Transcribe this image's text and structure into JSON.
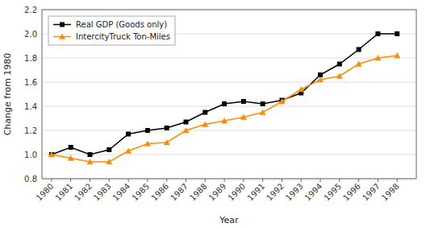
{
  "chart_data": {
    "type": "line",
    "x": [
      1980,
      1981,
      1982,
      1983,
      1984,
      1985,
      1986,
      1987,
      1988,
      1989,
      1990,
      1991,
      1992,
      1993,
      1994,
      1995,
      1996,
      1997,
      1998
    ],
    "series": [
      {
        "name": "Real GDP (Goods only)",
        "color": "#000000",
        "marker": "square",
        "values": [
          1.0,
          1.06,
          1.0,
          1.04,
          1.17,
          1.2,
          1.22,
          1.27,
          1.35,
          1.42,
          1.44,
          1.42,
          1.45,
          1.51,
          1.66,
          1.75,
          1.87,
          2.0,
          2.0
        ]
      },
      {
        "name": "IntercityTruck Ton-Miles",
        "color": "#FF8C00",
        "marker": "triangle",
        "values": [
          1.0,
          0.97,
          0.94,
          0.94,
          1.03,
          1.09,
          1.1,
          1.2,
          1.25,
          1.28,
          1.31,
          1.35,
          1.44,
          1.54,
          1.62,
          1.65,
          1.75,
          1.8,
          1.82
        ]
      }
    ],
    "xlabel": "Year",
    "ylabel": "Change from 1980",
    "xlim": [
      1979.5,
      1999
    ],
    "xticks": [
      1980,
      1981,
      1982,
      1983,
      1984,
      1985,
      1986,
      1987,
      1988,
      1989,
      1990,
      1991,
      1992,
      1993,
      1994,
      1995,
      1996,
      1997,
      1998
    ],
    "ylim": [
      0.8,
      2.2
    ],
    "yticks": [
      0.8,
      {
        "value": 1.0,
        "label": "1.0"
      },
      1.2,
      1.4,
      1.6,
      1.8,
      {
        "value": 2.0,
        "label": "2.0"
      },
      2.2
    ],
    "grid": true,
    "legend": "upper left"
  }
}
